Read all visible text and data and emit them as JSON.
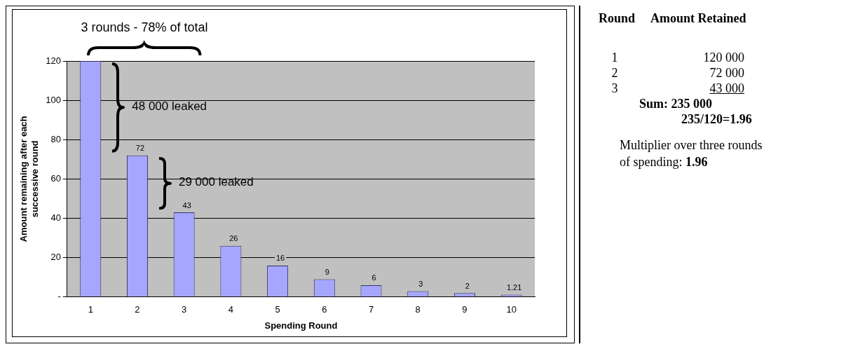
{
  "chart_data": [
    {
      "type": "bar",
      "categories": [
        "1",
        "2",
        "3",
        "4",
        "5",
        "6",
        "7",
        "8",
        "9",
        "10"
      ],
      "values": [
        120,
        72,
        43,
        26,
        16,
        9,
        6,
        3,
        2,
        1.21
      ],
      "value_labels": [
        null,
        "72",
        "43",
        "26",
        "16",
        "9",
        "6",
        "3",
        "2",
        "1.21"
      ],
      "color": "#a6a6ff",
      "xlabel": "Spending Round",
      "ylabel": "Amount remaining after each successive round",
      "ylim": [
        0,
        120
      ],
      "yticks": [
        {
          "value": 0,
          "label": "-"
        },
        20,
        40,
        60,
        80,
        100,
        120
      ],
      "grid": "y",
      "legend": false,
      "annotations": [
        "3 rounds - 78% of total",
        "48 000 leaked",
        "29 000 leaked"
      ]
    },
    {
      "type": "other",
      "annotations": [
        "Round",
        "Amount Retained",
        "1",
        "120 000",
        "2",
        "72 000",
        "3",
        "43 000",
        "Sum: 235 000",
        "235/120=1.96",
        "Multiplier over three rounds of spending:",
        "1.96"
      ]
    }
  ]
}
